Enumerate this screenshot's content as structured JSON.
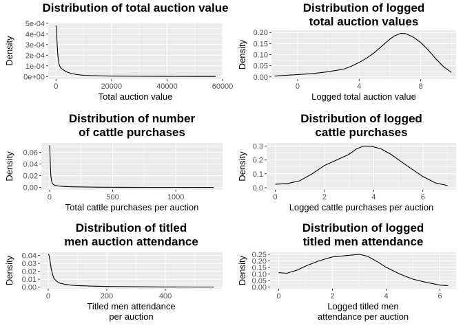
{
  "chart_data": [
    {
      "type": "line",
      "title": [
        "Distribution of total auction value"
      ],
      "xlabel": [
        "Total auction value"
      ],
      "ylabel": "Density",
      "xlim": [
        -2800,
        60000
      ],
      "ylim": [
        -2.4e-05,
        0.000505
      ],
      "xticks": [
        0,
        20000,
        40000,
        60000
      ],
      "xtick_labels": [
        "0",
        "20000",
        "40000",
        "60000"
      ],
      "yticks": [
        0,
        0.0001,
        0.0002,
        0.0003,
        0.0004,
        0.0005
      ],
      "ytick_labels": [
        "0e+00",
        "1e-04",
        "2e-04",
        "3e-04",
        "4e-04",
        "5e-04"
      ],
      "series": [
        {
          "x": [
            0,
            150,
            300,
            450,
            600,
            800,
            1000,
            1300,
            1700,
            2200,
            3000,
            4000,
            5500,
            7500,
            10000,
            15000,
            20000,
            30000,
            40000,
            50000,
            57500
          ],
          "y": [
            0.00048,
            0.00044,
            0.00036,
            0.00028,
            0.00022,
            0.00017,
            0.00013,
            0.0001,
            8.2e-05,
            7e-05,
            5.5e-05,
            4.2e-05,
            2.8e-05,
            1.8e-05,
            1.1e-05,
            6e-06,
            4e-06,
            2e-06,
            1.2e-06,
            6e-07,
            3e-07
          ]
        }
      ]
    },
    {
      "type": "line",
      "title": [
        "Distribution of logged",
        "total auction values"
      ],
      "xlabel": [
        "Logged total auction value"
      ],
      "ylabel": "Density",
      "xlim": [
        -1.7,
        10.3
      ],
      "ylim": [
        -0.01,
        0.21
      ],
      "xticks": [
        0,
        4,
        8
      ],
      "xtick_labels": [
        "0",
        "4",
        "8"
      ],
      "yticks": [
        0,
        0.05,
        0.1,
        0.15,
        0.2
      ],
      "ytick_labels": [
        "0.00",
        "0.05",
        "0.10",
        "0.15",
        "0.20"
      ],
      "series": [
        {
          "x": [
            -1.5,
            -1,
            0,
            1,
            2,
            3,
            3.5,
            4,
            4.5,
            5,
            5.5,
            6,
            6.3,
            6.7,
            7,
            7.5,
            8,
            8.5,
            9,
            9.5,
            10
          ],
          "y": [
            0.003,
            0.006,
            0.01,
            0.015,
            0.023,
            0.035,
            0.048,
            0.065,
            0.085,
            0.11,
            0.14,
            0.17,
            0.185,
            0.196,
            0.195,
            0.18,
            0.155,
            0.12,
            0.08,
            0.045,
            0.02
          ]
        }
      ]
    },
    {
      "type": "line",
      "title": [
        "Distribution of number",
        "of cattle purchases"
      ],
      "xlabel": [
        "Total cattle purchases per auction"
      ],
      "ylabel": "Density",
      "xlim": [
        -65,
        1370
      ],
      "ylim": [
        -0.004,
        0.076
      ],
      "xticks": [
        0,
        500,
        1000
      ],
      "xtick_labels": [
        "0",
        "500",
        "1000"
      ],
      "yticks": [
        0,
        0.02,
        0.04,
        0.06
      ],
      "ytick_labels": [
        "0.00",
        "0.02",
        "0.04",
        "0.06"
      ],
      "series": [
        {
          "x": [
            1,
            3,
            6,
            10,
            15,
            20,
            30,
            45,
            60,
            80,
            100,
            150,
            200,
            300,
            400,
            600,
            800,
            1000,
            1200,
            1300
          ],
          "y": [
            0.072,
            0.06,
            0.04,
            0.022,
            0.012,
            0.008,
            0.005,
            0.0035,
            0.0028,
            0.0022,
            0.0018,
            0.0012,
            0.0009,
            0.0006,
            0.0004,
            0.0002,
            0.00012,
            7e-05,
            4e-05,
            3e-05
          ]
        }
      ]
    },
    {
      "type": "line",
      "title": [
        "Distribution of logged",
        "cattle purchases"
      ],
      "xlabel": [
        "Logged cattle purchases per auction"
      ],
      "ylabel": "Density",
      "xlim": [
        -0.35,
        7.35
      ],
      "ylim": [
        -0.015,
        0.322
      ],
      "xticks": [
        0,
        2,
        4,
        6
      ],
      "xtick_labels": [
        "0",
        "2",
        "4",
        "6"
      ],
      "yticks": [
        0,
        0.1,
        0.2,
        0.3
      ],
      "ytick_labels": [
        "0.0",
        "0.1",
        "0.2",
        "0.3"
      ],
      "series": [
        {
          "x": [
            0,
            0.5,
            1,
            1.5,
            2,
            2.5,
            3,
            3.3,
            3.6,
            3.9,
            4.3,
            4.7,
            5.1,
            5.5,
            6,
            6.5,
            7
          ],
          "y": [
            0.025,
            0.03,
            0.05,
            0.1,
            0.16,
            0.2,
            0.24,
            0.28,
            0.3,
            0.298,
            0.28,
            0.24,
            0.19,
            0.14,
            0.08,
            0.035,
            0.015
          ]
        }
      ]
    },
    {
      "type": "line",
      "title": [
        "Distribution of titled",
        "men auction attendance"
      ],
      "xlabel": [
        "Titled men attendance",
        "per auction"
      ],
      "ylabel": "Density",
      "xlim": [
        -28,
        595
      ],
      "ylim": [
        -0.002,
        0.044
      ],
      "xticks": [
        0,
        200,
        400
      ],
      "xtick_labels": [
        "0",
        "200",
        "400"
      ],
      "yticks": [
        0,
        0.01,
        0.02,
        0.03,
        0.04
      ],
      "ytick_labels": [
        "0.00",
        "0.01",
        "0.02",
        "0.03",
        "0.04"
      ],
      "series": [
        {
          "x": [
            1,
            3,
            6,
            10,
            15,
            20,
            30,
            40,
            60,
            80,
            100,
            150,
            200,
            300,
            400,
            500,
            565
          ],
          "y": [
            0.042,
            0.04,
            0.034,
            0.024,
            0.016,
            0.011,
            0.007,
            0.005,
            0.0035,
            0.0025,
            0.002,
            0.0013,
            0.0009,
            0.0005,
            0.0003,
            0.0002,
            0.00015
          ]
        }
      ]
    },
    {
      "type": "line",
      "title": [
        "Distribution of logged",
        "titled men attendance"
      ],
      "xlabel": [
        "Logged titled men",
        "attendance per auction"
      ],
      "ylabel": "Density",
      "xlim": [
        -0.32,
        6.6
      ],
      "ylim": [
        -0.013,
        0.265
      ],
      "xticks": [
        0,
        2,
        4,
        6
      ],
      "xtick_labels": [
        "0",
        "2",
        "4",
        "6"
      ],
      "yticks": [
        0,
        0.05,
        0.1,
        0.15,
        0.2,
        0.25
      ],
      "ytick_labels": [
        "0.00",
        "0.05",
        "0.10",
        "0.15",
        "0.20",
        "0.25"
      ],
      "series": [
        {
          "x": [
            0,
            0.3,
            0.7,
            1,
            1.5,
            2,
            2.5,
            3,
            3.3,
            3.7,
            4,
            4.5,
            5,
            5.5,
            6,
            6.3
          ],
          "y": [
            0.11,
            0.105,
            0.13,
            0.16,
            0.2,
            0.23,
            0.24,
            0.25,
            0.235,
            0.19,
            0.15,
            0.1,
            0.06,
            0.035,
            0.015,
            0.01
          ]
        }
      ]
    }
  ]
}
